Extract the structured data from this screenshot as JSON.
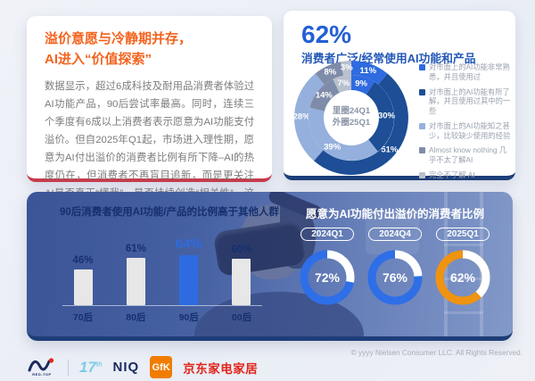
{
  "header_card": {
    "title_line1": "溢价意愿与冷静期并存，",
    "title_line2": "AI进入“价值探索”",
    "body": "数据显示，超过6成科技及耐用品消费者体验过AI功能产品，90后尝试率最高。同时，连续三个季度有6成以上消费者表示愿意为AI功能支付溢价。但自2025年Q1起，市场进入理性期，愿意为AI付出溢价的消费者比例有所下降–AI的热度仍在，但消费者不再盲目追新，而是更关注AI是否真正“懂我”、是否持续创造“相关性”，这也标志着AI产品从噱头竞争进入真实价值竞争。"
  },
  "usage_card": {
    "stat": "62%",
    "subtitle": "消费者广泛/经常使用AI功能和产品"
  },
  "chart_data": [
    {
      "id": "usage_donut",
      "type": "pie",
      "variant": "nested-donut",
      "title": "62% 消费者广泛/经常使用AI功能和产品",
      "center_label_line1": "里圈24Q1",
      "center_label_line2": "外圈25Q1",
      "categories": [
        "对市面上的AI功能非常熟悉，并且使用过",
        "对市面上的AI功能有所了解，并且使用过其中的一些",
        "对市面上的AI功能知之甚少，比较缺少使用的经验",
        "Almost know nothing 几乎不太了解AI",
        "完全不了解 AI"
      ],
      "colors": [
        "#2e6be0",
        "#1d4e96",
        "#95b0dc",
        "#7f8ca9",
        "#b9c0cd"
      ],
      "series": [
        {
          "name": "里圈24Q1",
          "ring": "inner",
          "values": [
            9,
            30,
            39,
            14,
            7
          ]
        },
        {
          "name": "外圈25Q1",
          "ring": "outer",
          "values": [
            11,
            51,
            28,
            8,
            3
          ]
        }
      ],
      "legend_position": "right"
    },
    {
      "id": "age_bars",
      "type": "bar",
      "title": "90后消费者使用AI功能/产品的比例高于其他人群",
      "categories": [
        "70后",
        "80后",
        "90后",
        "00后"
      ],
      "values": [
        46,
        61,
        64,
        60
      ],
      "value_labels": [
        "46%",
        "61%",
        "64%",
        "60%"
      ],
      "highlight_index": 2,
      "bar_color": "#e7e7e7",
      "highlight_color": "#2e6be0",
      "ylim": [
        0,
        100
      ]
    },
    {
      "id": "premium_rings",
      "type": "pie",
      "variant": "progress-rings",
      "title": "愿意为AI功能付出溢价的消费者比例",
      "categories": [
        "2024Q1",
        "2024Q4",
        "2025Q1"
      ],
      "values": [
        72,
        76,
        62
      ],
      "value_labels": [
        "72%",
        "76%",
        "62%"
      ],
      "colors": [
        "#2e6fe8",
        "#2e6fe8",
        "#ef9311"
      ],
      "track_color": "#ffffff"
    }
  ],
  "footer": {
    "logo_redtop": "RED-TOP",
    "logo_17": "17",
    "logo_17_sup": "th",
    "logo_niq": "NIQ",
    "logo_gfk": "GfK",
    "logo_jd": "京东家电家居",
    "copyright": "© yyyy Nielsen Consumer LLC. All Rights Reserved."
  }
}
